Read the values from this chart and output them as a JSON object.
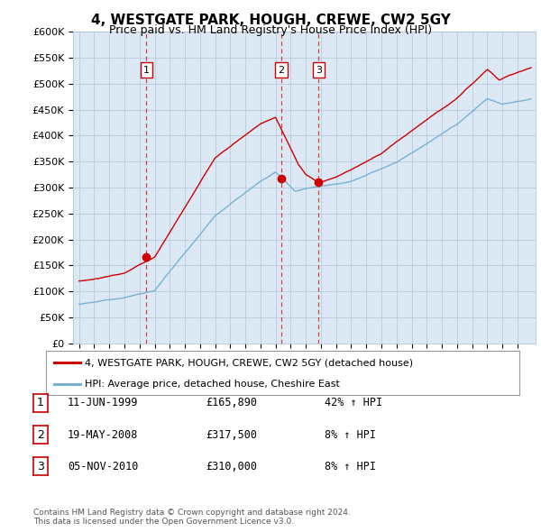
{
  "title": "4, WESTGATE PARK, HOUGH, CREWE, CW2 5GY",
  "subtitle": "Price paid vs. HM Land Registry's House Price Index (HPI)",
  "ylabel_ticks": [
    "£0",
    "£50K",
    "£100K",
    "£150K",
    "£200K",
    "£250K",
    "£300K",
    "£350K",
    "£400K",
    "£450K",
    "£500K",
    "£550K",
    "£600K"
  ],
  "ytick_values": [
    0,
    50000,
    100000,
    150000,
    200000,
    250000,
    300000,
    350000,
    400000,
    450000,
    500000,
    550000,
    600000
  ],
  "xlim_start": 1994.6,
  "xlim_end": 2025.2,
  "ylim_min": 0,
  "ylim_max": 600000,
  "sale_color": "#cc0000",
  "hpi_color": "#7ab0d4",
  "chart_bg_color": "#dce9f5",
  "purchases": [
    {
      "date_num": 1999.44,
      "price": 165890,
      "label": "1"
    },
    {
      "date_num": 2008.38,
      "price": 317500,
      "label": "2"
    },
    {
      "date_num": 2010.84,
      "price": 310000,
      "label": "3"
    }
  ],
  "vline_color": "#cc0000",
  "legend_sale_label": "4, WESTGATE PARK, HOUGH, CREWE, CW2 5GY (detached house)",
  "legend_hpi_label": "HPI: Average price, detached house, Cheshire East",
  "table_rows": [
    {
      "num": "1",
      "date": "11-JUN-1999",
      "price": "£165,890",
      "change": "42% ↑ HPI"
    },
    {
      "num": "2",
      "date": "19-MAY-2008",
      "price": "£317,500",
      "change": "8% ↑ HPI"
    },
    {
      "num": "3",
      "date": "05-NOV-2010",
      "price": "£310,000",
      "change": "8% ↑ HPI"
    }
  ],
  "footnote": "Contains HM Land Registry data © Crown copyright and database right 2024.\nThis data is licensed under the Open Government Licence v3.0.",
  "background_color": "#ffffff",
  "grid_color": "#b0c4d8"
}
